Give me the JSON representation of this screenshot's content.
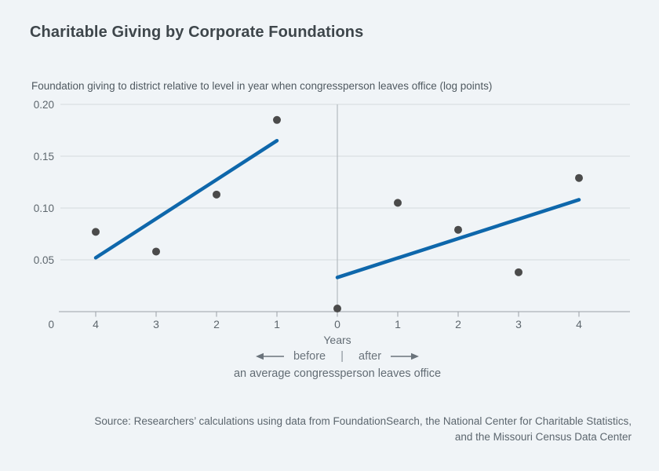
{
  "chart_data": {
    "type": "scatter",
    "title": "Charitable Giving by Corporate Foundations",
    "ylabel": "Foundation giving to district relative to level in year when congressperson leaves office (log points)",
    "xlabel": "Years",
    "ylim": [
      0,
      0.2
    ],
    "grid": "horizontal",
    "legend": "none",
    "y_ticks": [
      {
        "value": 0,
        "label": "0"
      },
      {
        "value": 0.05,
        "label": "0.05"
      },
      {
        "value": 0.1,
        "label": "0.10"
      },
      {
        "value": 0.15,
        "label": "0.15"
      },
      {
        "value": 0.2,
        "label": "0.20"
      }
    ],
    "x_ticks": [
      {
        "value": -4,
        "label": "4"
      },
      {
        "value": -3,
        "label": "3"
      },
      {
        "value": -2,
        "label": "2"
      },
      {
        "value": -1,
        "label": "1"
      },
      {
        "value": 0,
        "label": "0"
      },
      {
        "value": 1,
        "label": "1"
      },
      {
        "value": 2,
        "label": "2"
      },
      {
        "value": 3,
        "label": "3"
      },
      {
        "value": 4,
        "label": "4"
      }
    ],
    "points": [
      {
        "x": -4,
        "y": 0.077
      },
      {
        "x": -3,
        "y": 0.058
      },
      {
        "x": -2,
        "y": 0.113
      },
      {
        "x": -1,
        "y": 0.185
      },
      {
        "x": 0,
        "y": 0.003
      },
      {
        "x": 1,
        "y": 0.105
      },
      {
        "x": 2,
        "y": 0.079
      },
      {
        "x": 3,
        "y": 0.038
      },
      {
        "x": 4,
        "y": 0.129
      }
    ],
    "trend_lines": [
      {
        "name": "before",
        "x": [
          -4,
          -1
        ],
        "y": [
          0.052,
          0.165
        ]
      },
      {
        "name": "after",
        "x": [
          0,
          4
        ],
        "y": [
          0.033,
          0.108
        ]
      }
    ]
  },
  "annotations": {
    "before_label": "before",
    "after_label": "after",
    "separator": "|",
    "caption": "an average congressperson leaves office"
  },
  "source": {
    "line1": "Source: Researchers’ calculations using data from FoundationSearch, the National Center for Charitable Statistics,",
    "line2": "and the Missouri Census Data Center"
  },
  "colors": {
    "background": "#f0f4f7",
    "trend_line": "#0e67ab",
    "point": "#4b4b4b",
    "gridline": "#d5dade",
    "axis": "#9aa1a7",
    "divider": "#a9b0b5",
    "tick_text": "#5d666d"
  }
}
